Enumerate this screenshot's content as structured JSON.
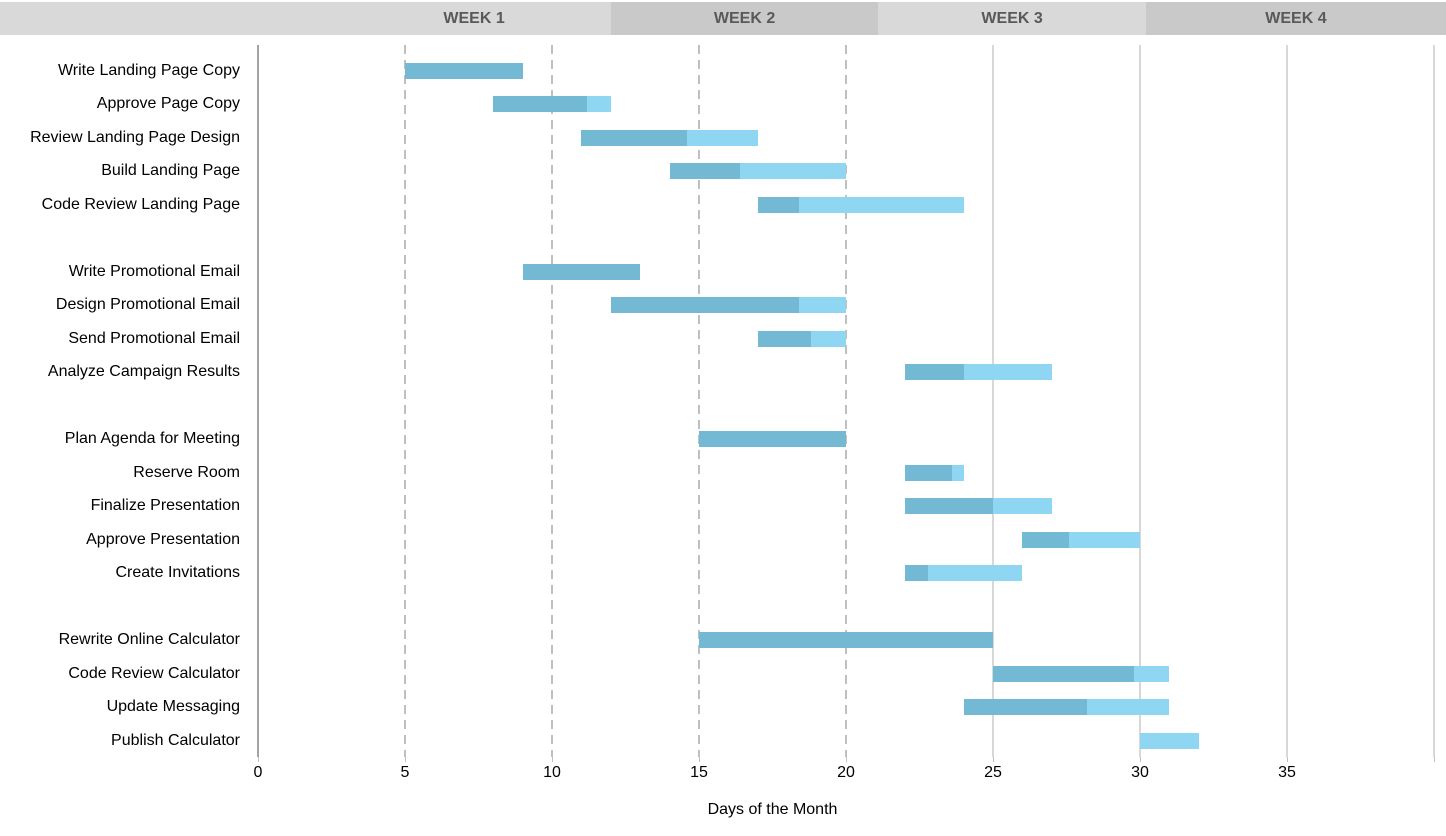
{
  "header": {
    "weeks": [
      {
        "label": "WEEK 1",
        "start_day": 2.7,
        "end_day": 12.0,
        "shade": "light"
      },
      {
        "label": "WEEK 2",
        "start_day": 12.0,
        "end_day": 21.1,
        "shade": "dark"
      },
      {
        "label": "WEEK 3",
        "start_day": 21.1,
        "end_day": 30.2,
        "shade": "light"
      },
      {
        "label": "WEEK 4",
        "start_day": 30.2,
        "end_day": 40.5,
        "shade": "dark"
      }
    ]
  },
  "chart_data": {
    "type": "bar",
    "subtype": "gantt",
    "title": "",
    "xlabel": "Days of the Month",
    "ylabel": "",
    "xlim": [
      0,
      40.4
    ],
    "x_ticks": [
      0,
      5,
      10,
      15,
      20,
      25,
      30,
      35
    ],
    "dashed_gridline_days": [
      5,
      10,
      15,
      20
    ],
    "solid_gridline_days": [
      25,
      30,
      35,
      40
    ],
    "grid": true,
    "legend": false,
    "colors": {
      "complete": "#74b9d3",
      "remaining": "#8ed6f2",
      "header_light": "#d9d9d9",
      "header_dark": "#c9c9c9",
      "header_text": "#595959",
      "gridline_dashed": "#bfbfbf",
      "gridline_solid": "#d8d8d8",
      "axis_line": "#a3a3a3"
    },
    "groups": [
      {
        "tasks": [
          {
            "name": "Write Landing Page Copy",
            "start": 5,
            "end": 9,
            "done_until": 9,
            "percent_complete": 100
          },
          {
            "name": "Approve Page Copy",
            "start": 8,
            "end": 12,
            "done_until": 11.2,
            "percent_complete": 80
          },
          {
            "name": "Review Landing Page Design",
            "start": 11,
            "end": 17,
            "done_until": 14.6,
            "percent_complete": 60
          },
          {
            "name": "Build Landing Page",
            "start": 14,
            "end": 20,
            "done_until": 16.4,
            "percent_complete": 40
          },
          {
            "name": "Code Review Landing Page",
            "start": 17,
            "end": 24,
            "done_until": 18.4,
            "percent_complete": 20
          }
        ]
      },
      {
        "tasks": [
          {
            "name": "Write Promotional Email",
            "start": 9,
            "end": 13,
            "done_until": 13,
            "percent_complete": 100
          },
          {
            "name": "Design Promotional Email",
            "start": 12,
            "end": 20,
            "done_until": 18.4,
            "percent_complete": 80
          },
          {
            "name": "Send Promotional Email",
            "start": 17,
            "end": 20,
            "done_until": 18.8,
            "percent_complete": 60
          },
          {
            "name": "Analyze Campaign Results",
            "start": 22,
            "end": 27,
            "done_until": 24,
            "percent_complete": 40
          }
        ]
      },
      {
        "tasks": [
          {
            "name": "Plan Agenda for Meeting",
            "start": 15,
            "end": 20,
            "done_until": 20,
            "percent_complete": 100
          },
          {
            "name": "Reserve Room",
            "start": 22,
            "end": 24,
            "done_until": 23.6,
            "percent_complete": 80
          },
          {
            "name": "Finalize Presentation",
            "start": 22,
            "end": 27,
            "done_until": 25,
            "percent_complete": 60
          },
          {
            "name": "Approve Presentation",
            "start": 26,
            "end": 30,
            "done_until": 27.6,
            "percent_complete": 40
          },
          {
            "name": "Create Invitations",
            "start": 22,
            "end": 26,
            "done_until": 22.8,
            "percent_complete": 20
          }
        ]
      },
      {
        "tasks": [
          {
            "name": "Rewrite Online Calculator",
            "start": 15,
            "end": 25,
            "done_until": 25,
            "percent_complete": 100
          },
          {
            "name": "Code Review Calculator",
            "start": 25,
            "end": 31,
            "done_until": 29.8,
            "percent_complete": 80
          },
          {
            "name": "Update Messaging",
            "start": 24,
            "end": 31,
            "done_until": 28.2,
            "percent_complete": 60
          },
          {
            "name": "Publish Calculator",
            "start": 30,
            "end": 32,
            "done_until": 30,
            "percent_complete": 0
          }
        ]
      }
    ]
  }
}
